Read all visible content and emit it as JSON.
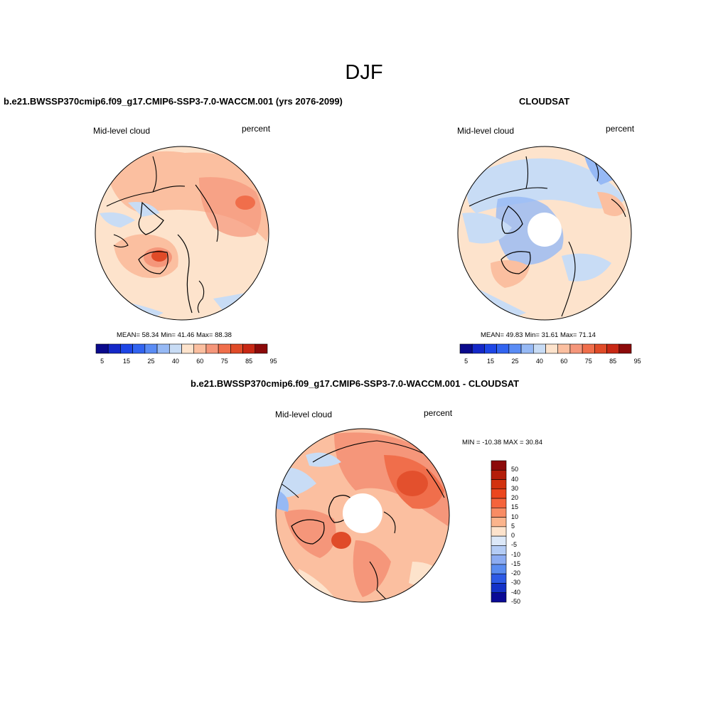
{
  "figure": {
    "title": "DJF",
    "panels": [
      {
        "title": "b.e21.BWSSP370cmip6.f09_g17.CMIP6-SSP3-7.0-WACCM.001 (yrs 2076-2099)",
        "variable": "Mid-level cloud",
        "units": "percent",
        "stats": {
          "mean_label": "MEAN=",
          "mean": "58.34",
          "min_label": "Min=",
          "min": "41.46",
          "max_label": "Max=",
          "max": "88.38"
        },
        "colorbar_ticks": [
          "5",
          "15",
          "25",
          "40",
          "60",
          "75",
          "85",
          "95"
        ]
      },
      {
        "title": "CLOUDSAT",
        "variable": "Mid-level cloud",
        "units": "percent",
        "stats": {
          "mean_label": "MEAN=",
          "mean": "49.83",
          "min_label": "Min=",
          "min": "31.61",
          "max_label": "Max=",
          "max": "71.14"
        },
        "colorbar_ticks": [
          "5",
          "15",
          "25",
          "40",
          "60",
          "75",
          "85",
          "95"
        ]
      },
      {
        "title": "b.e21.BWSSP370cmip6.f09_g17.CMIP6-SSP3-7.0-WACCM.001 - CLOUDSAT",
        "variable": "Mid-level cloud",
        "units": "percent",
        "stats_text": "MIN = -10.38 MAX =  30.84",
        "colorbar_ticks": [
          "50",
          "40",
          "30",
          "20",
          "15",
          "10",
          "5",
          "0",
          "-5",
          "-10",
          "-15",
          "-20",
          "-30",
          "-40",
          "-50"
        ]
      }
    ]
  },
  "colors": {
    "scale_abs": [
      "#0a0a8c",
      "#1428c8",
      "#1e46e6",
      "#3264f0",
      "#5a8cf5",
      "#96b9f5",
      "#c8dcf5",
      "#fde3cc",
      "#fbbfa0",
      "#f5967a",
      "#f06e4b",
      "#e04b28",
      "#c82814",
      "#8c0a0a"
    ],
    "scale_diff": [
      "#8c0a0a",
      "#b41e0a",
      "#d2320f",
      "#eb461e",
      "#f5643c",
      "#f88c64",
      "#fbb48c",
      "#fde3cc",
      "#dce8f8",
      "#b4ccf5",
      "#8cacf2",
      "#5a8cf0",
      "#2d5ae6",
      "#1432c8",
      "#0a0a96"
    ]
  }
}
